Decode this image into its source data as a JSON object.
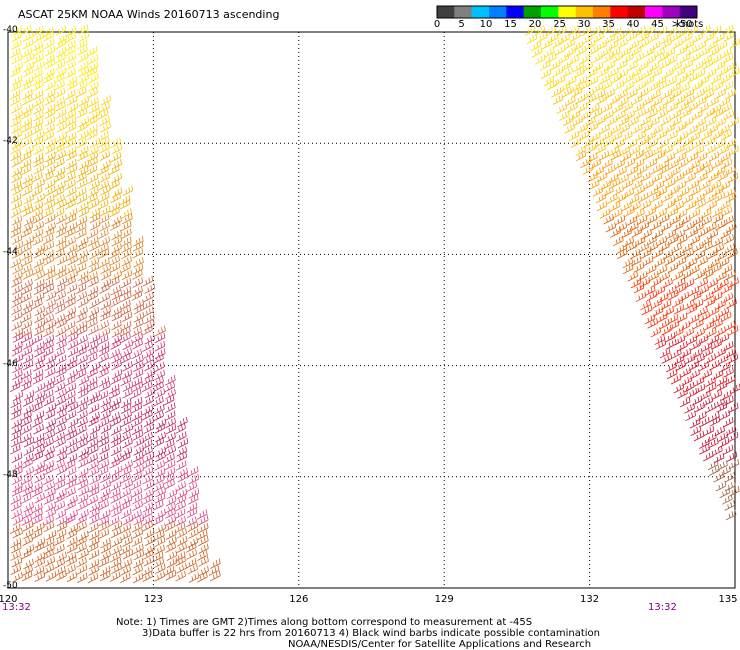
{
  "title": "ASCAT 25KM NOAA Winds 20160713 ascending",
  "colorbar": {
    "labels": [
      "0",
      "5",
      "10",
      "15",
      "20",
      "25",
      "30",
      "35",
      "40",
      "45",
      ">50"
    ],
    "units": "knots",
    "colors": [
      "#404040",
      "#808080",
      "#00c0ff",
      "#0080ff",
      "#0000ff",
      "#00a000",
      "#00ff00",
      "#ffff00",
      "#ffc000",
      "#ff8000",
      "#ff0000",
      "#c00000",
      "#ff00ff",
      "#a000c0",
      "#400080"
    ]
  },
  "axes": {
    "lat_labels": [
      "-40",
      "-42",
      "-44",
      "-46",
      "-48",
      "-50"
    ],
    "lon_labels": [
      "120",
      "123",
      "126",
      "129",
      "132",
      "135"
    ],
    "lat_range": [
      -50,
      -40
    ],
    "lon_range": [
      120,
      135
    ]
  },
  "swath_times": {
    "left": "13:32",
    "right": "13:32"
  },
  "notes": {
    "line1": "Note: 1) Times are GMT 2)Times along bottom correspond to measurement at -45S",
    "line2": "3)Data buffer is 22 hrs from 20160713 4) Black wind barbs indicate possible contamination",
    "line3": "NOAA/NESDIS/Center for Satellite Applications and Research"
  }
}
